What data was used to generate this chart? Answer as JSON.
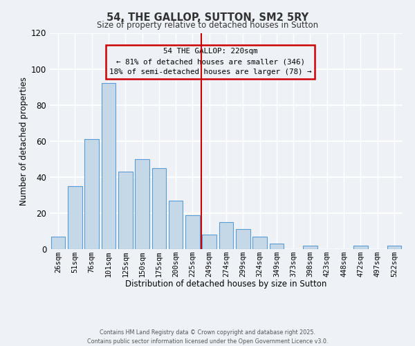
{
  "title": "54, THE GALLOP, SUTTON, SM2 5RY",
  "subtitle": "Size of property relative to detached houses in Sutton",
  "xlabel": "Distribution of detached houses by size in Sutton",
  "ylabel": "Number of detached properties",
  "bar_labels": [
    "26sqm",
    "51sqm",
    "76sqm",
    "101sqm",
    "125sqm",
    "150sqm",
    "175sqm",
    "200sqm",
    "225sqm",
    "249sqm",
    "274sqm",
    "299sqm",
    "324sqm",
    "349sqm",
    "373sqm",
    "398sqm",
    "423sqm",
    "448sqm",
    "472sqm",
    "497sqm",
    "522sqm"
  ],
  "bar_values": [
    7,
    35,
    61,
    92,
    43,
    50,
    45,
    27,
    19,
    8,
    15,
    11,
    7,
    3,
    0,
    2,
    0,
    0,
    2,
    0,
    2
  ],
  "bar_color": "#c5d8e8",
  "bar_edge_color": "#5b9bd5",
  "ylim": [
    0,
    120
  ],
  "yticks": [
    0,
    20,
    40,
    60,
    80,
    100,
    120
  ],
  "vline_index": 8,
  "vline_color": "#cc0000",
  "annotation_title": "54 THE GALLOP: 220sqm",
  "annotation_line1": "← 81% of detached houses are smaller (346)",
  "annotation_line2": "18% of semi-detached houses are larger (78) →",
  "annotation_box_color": "#cc0000",
  "bg_color": "#eef2f7",
  "grid_color": "#ffffff",
  "footer1": "Contains HM Land Registry data © Crown copyright and database right 2025.",
  "footer2": "Contains public sector information licensed under the Open Government Licence v3.0."
}
